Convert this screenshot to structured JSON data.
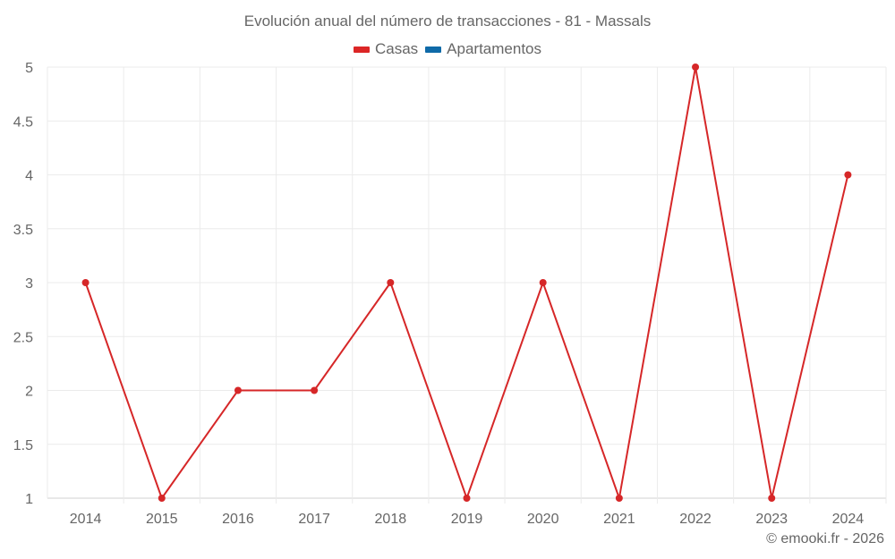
{
  "title": "Evolución anual del número de transacciones - 81 - Massals",
  "legend": [
    {
      "label": "Casas",
      "color": "#dc2626"
    },
    {
      "label": "Apartamentos",
      "color": "#0f6aa8"
    }
  ],
  "footer": "© emooki.fr - 2026",
  "colors": {
    "line": "#d62728",
    "grid": "#ebebeb",
    "axis": "#d0d0d0",
    "text": "#666666"
  },
  "chart_data": {
    "type": "line",
    "title": "Evolución anual del número de transacciones - 81 - Massals",
    "xlabel": "",
    "ylabel": "",
    "categories": [
      "2014",
      "2015",
      "2016",
      "2017",
      "2018",
      "2019",
      "2020",
      "2021",
      "2022",
      "2023",
      "2024"
    ],
    "series": [
      {
        "name": "Casas",
        "color": "#d62728",
        "values": [
          3,
          1,
          2,
          2,
          3,
          1,
          3,
          1,
          5,
          1,
          4
        ]
      },
      {
        "name": "Apartamentos",
        "color": "#0f6aa8",
        "values": []
      }
    ],
    "ylim": [
      1,
      5
    ],
    "yticks": [
      "1",
      "1.5",
      "2",
      "2.5",
      "3",
      "3.5",
      "4",
      "4.5",
      "5"
    ],
    "grid": true,
    "legend_position": "top"
  }
}
